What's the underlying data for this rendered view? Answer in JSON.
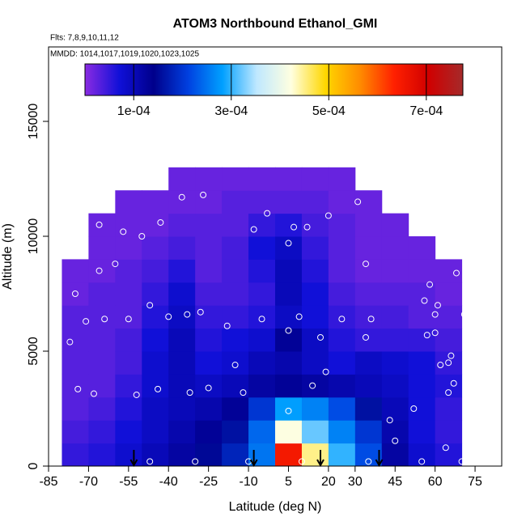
{
  "chart_data": {
    "type": "heatmap",
    "title": "ATOM3 Northbound Ethanol_GMI",
    "subtitle": "Flts: 7,8,9,10,11,12",
    "annotation": "MMDD: 1014,1017,1019,1020,1023,1025",
    "x_label": "Latitude (deg N)",
    "y_label": "Altitude (m)",
    "xlim": [
      -85,
      85
    ],
    "ylim": [
      0,
      18240
    ],
    "xticks": [
      -85,
      -70,
      -55,
      -40,
      -25,
      -10,
      5,
      20,
      30,
      45,
      60,
      75
    ],
    "yticks": [
      0,
      5000,
      10000,
      15000
    ],
    "xbins": [
      -80,
      -70,
      -60,
      -50,
      -40,
      -30,
      -20,
      -10,
      0,
      10,
      20,
      30,
      40,
      50,
      60,
      70
    ],
    "ybins": [
      0,
      1000,
      2000,
      3000,
      4000,
      5000,
      6000,
      7000,
      8000,
      9000,
      10000,
      11000,
      12000,
      13000
    ],
    "values": [
      [
        5e-05,
        6e-05,
        8e-05,
        0.0001,
        0.00012,
        0.00015,
        0.00018,
        0.00025,
        0.00065,
        0.00045,
        0.0003,
        0.00022,
        0.00012,
        8e-05,
        6e-05
      ],
      [
        4e-05,
        5e-05,
        7e-05,
        9e-05,
        0.00011,
        0.00013,
        0.00016,
        0.00024,
        0.00042,
        0.00032,
        0.00026,
        0.0002,
        0.00011,
        7e-05,
        5e-05
      ],
      [
        3e-05,
        4e-05,
        6e-05,
        9e-05,
        0.0001,
        0.00011,
        0.00013,
        0.0002,
        0.00028,
        0.00026,
        0.00022,
        0.00016,
        0.0001,
        7e-05,
        5e-05
      ],
      [
        3e-05,
        3e-05,
        5e-05,
        8e-05,
        0.0001,
        9e-05,
        0.0001,
        0.00012,
        0.00013,
        0.00012,
        0.00011,
        0.0001,
        9e-05,
        7e-05,
        6e-05
      ],
      [
        3e-05,
        3e-05,
        4e-05,
        8e-05,
        0.0001,
        7e-05,
        8e-05,
        0.0001,
        0.00011,
        9e-05,
        7e-05,
        9e-05,
        8e-05,
        7e-05,
        5e-05
      ],
      [
        3e-05,
        3e-05,
        4e-05,
        7e-05,
        0.0001,
        6e-05,
        7e-05,
        8e-05,
        0.00013,
        9e-05,
        6e-05,
        5e-05,
        5e-05,
        5e-05,
        4e-05
      ],
      [
        3e-05,
        3e-05,
        3e-05,
        6e-05,
        9e-05,
        5e-05,
        5e-05,
        6e-05,
        9e-05,
        7e-05,
        5e-05,
        4e-05,
        4e-05,
        3e-05,
        3e-05
      ],
      [
        2e-05,
        3e-05,
        3e-05,
        5e-05,
        8e-05,
        4e-05,
        4e-05,
        5e-05,
        0.0001,
        7e-05,
        4e-05,
        3e-05,
        3e-05,
        3e-05,
        2e-05
      ],
      [
        2e-05,
        2e-05,
        3e-05,
        4e-05,
        6e-05,
        3e-05,
        4e-05,
        6e-05,
        0.0001,
        6e-05,
        3e-05,
        2e-05,
        2e-05,
        2e-05,
        2e-05
      ],
      [
        null,
        2e-05,
        2e-05,
        3e-05,
        4e-05,
        3e-05,
        4e-05,
        7e-05,
        9e-05,
        5e-05,
        3e-05,
        2e-05,
        2e-05,
        2e-05,
        null
      ],
      [
        null,
        2e-05,
        2e-05,
        2e-05,
        3e-05,
        3e-05,
        3e-05,
        5e-05,
        6e-05,
        4e-05,
        3e-05,
        2e-05,
        2e-05,
        null,
        null
      ],
      [
        null,
        null,
        2e-05,
        2e-05,
        2e-05,
        2e-05,
        3e-05,
        3e-05,
        3e-05,
        3e-05,
        2e-05,
        2e-05,
        null,
        null,
        null
      ],
      [
        null,
        null,
        null,
        null,
        2e-05,
        2e-05,
        2e-05,
        2e-05,
        2e-05,
        2e-05,
        2e-05,
        null,
        null,
        null,
        null
      ]
    ],
    "clim": [
      0,
      0.000775
    ],
    "cticks": [
      {
        "value": 0.0001,
        "label": "1e-04"
      },
      {
        "value": 0.0003,
        "label": "3e-04"
      },
      {
        "value": 0.0005,
        "label": "5e-04"
      },
      {
        "value": 0.0007,
        "label": "7e-04"
      }
    ],
    "colormap": [
      "#8a2be2",
      "#1010d8",
      "#00008b",
      "#0040e0",
      "#00a0ff",
      "#bfe8ff",
      "#ffffe0",
      "#ffd700",
      "#ff8c00",
      "#ff2000",
      "#d00000",
      "#a52a2a"
    ],
    "points": {
      "x": [
        -77,
        -74,
        -75,
        -73,
        -71,
        -68,
        -66,
        -66,
        -64,
        -60,
        -57,
        -55,
        -52,
        -50,
        -47,
        -44,
        -43,
        -40,
        -35,
        -33,
        -32,
        -27,
        -28,
        -25,
        -18,
        -15,
        -12,
        -5,
        -3,
        -8,
        5,
        5,
        5,
        7,
        9,
        12,
        14,
        17,
        19,
        20,
        25,
        31,
        34,
        34,
        36,
        43,
        45,
        52,
        56,
        57,
        58,
        60,
        60,
        61,
        62,
        65,
        65,
        66,
        67,
        68,
        71,
        72,
        64,
        -47,
        -30,
        -10,
        10,
        35,
        55,
        70
      ],
      "y": [
        5400,
        3350,
        7500,
        9500,
        6300,
        3150,
        10500,
        8500,
        6400,
        8800,
        10200,
        6400,
        3100,
        10000,
        7000,
        3350,
        10600,
        6500,
        11700,
        6600,
        3200,
        11800,
        6700,
        3400,
        6100,
        4400,
        3200,
        6400,
        11000,
        10300,
        9700,
        5900,
        2400,
        10400,
        6500,
        10400,
        3500,
        5600,
        4100,
        10900,
        6400,
        11500,
        8800,
        5600,
        6400,
        2000,
        1100,
        2500,
        7200,
        5700,
        7900,
        6600,
        5800,
        7000,
        4400,
        3200,
        4500,
        4800,
        3600,
        8400,
        6600,
        2950,
        800,
        200,
        200,
        200,
        200,
        200,
        200,
        200
      ]
    },
    "point_color": "#ffffff",
    "arrows": [
      -53,
      -8,
      17,
      39
    ]
  }
}
